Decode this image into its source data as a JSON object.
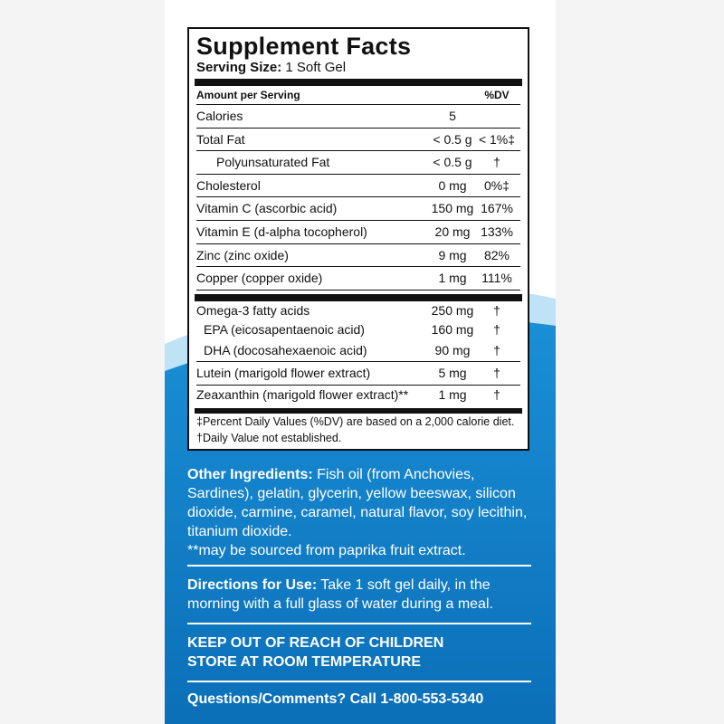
{
  "facts": {
    "title": "Supplement Facts",
    "serving_label": "Serving Size:",
    "serving_value": "1 Soft Gel",
    "header": {
      "amount": "Amount per Serving",
      "dv": "%DV"
    },
    "rows": [
      [
        "Calories",
        "5",
        ""
      ],
      [
        "Total Fat",
        "< 0.5 g",
        "< 1%‡"
      ],
      [
        "Polyunsaturated Fat",
        "< 0.5 g",
        "†"
      ],
      [
        "Cholesterol",
        "0 mg",
        "0%‡"
      ],
      [
        "Vitamin C (ascorbic acid)",
        "150 mg",
        "167%"
      ],
      [
        "Vitamin E (d-alpha tocopherol)",
        "20 mg",
        "133%"
      ],
      [
        "Zinc (zinc oxide)",
        "9 mg",
        "82%"
      ],
      [
        "Copper (copper oxide)",
        "1 mg",
        "111%"
      ],
      [
        "Omega-3 fatty acids",
        "250 mg",
        "†"
      ],
      [
        "EPA (eicosapentaenoic acid)",
        "160 mg",
        "†"
      ],
      [
        "DHA (docosahexaenoic acid)",
        "90 mg",
        "†"
      ],
      [
        "Lutein (marigold flower extract)",
        "5 mg",
        "†"
      ],
      [
        "Zeaxanthin (marigold flower extract)**",
        "1 mg",
        "†"
      ]
    ],
    "footnotes": [
      "‡Percent Daily Values (%DV) are based on a 2,000 calorie diet.",
      "†Daily Value not established."
    ]
  },
  "ingredients": {
    "label": "Other Ingredients:",
    "text": "Fish oil (from Anchovies, Sardines), gelatin, glycerin, yellow beeswax, silicon dioxide, carmine, caramel, natural flavor, soy lecithin, titanium dioxide.",
    "note": "**may be sourced from paprika fruit extract."
  },
  "directions": {
    "label": "Directions for Use:",
    "text": "Take 1 soft gel daily, in the morning with a full glass of water during a meal."
  },
  "warnings": [
    "KEEP OUT OF REACH OF CHILDREN",
    "STORE AT ROOM TEMPERATURE"
  ],
  "contact": "Questions/Comments? Call 1-800-553-5340"
}
